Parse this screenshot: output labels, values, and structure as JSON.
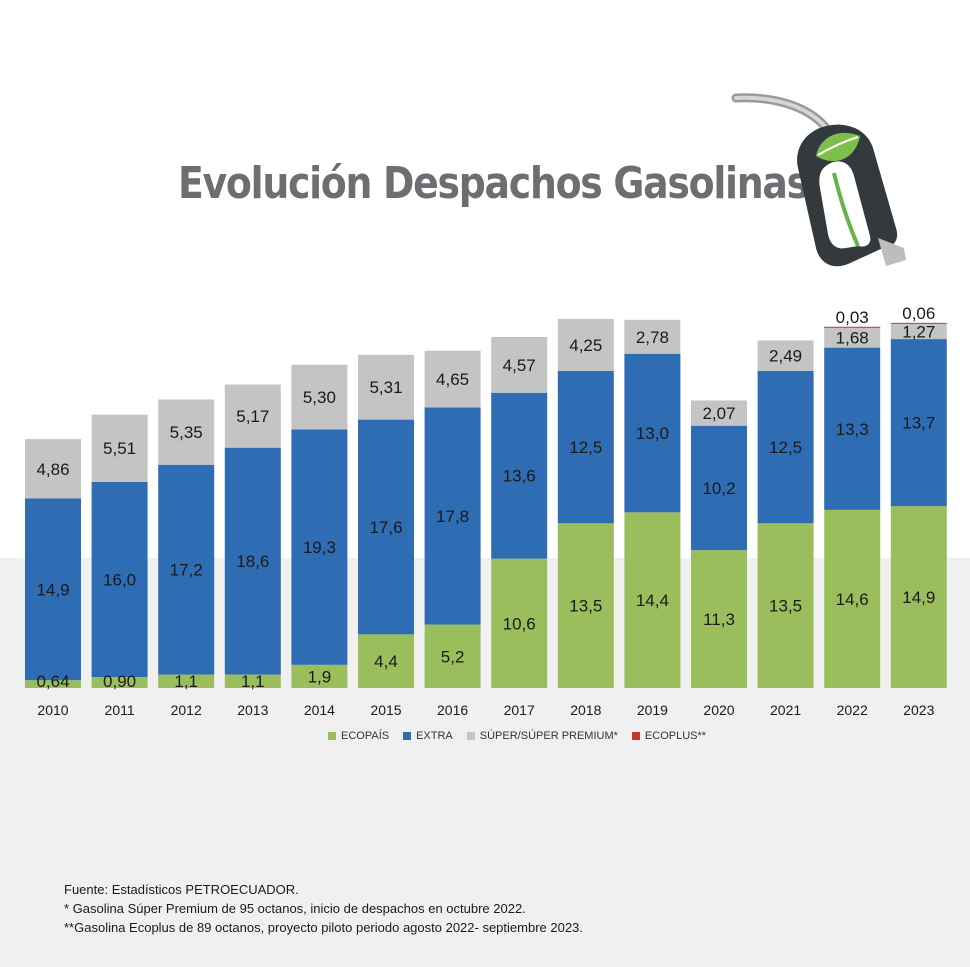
{
  "title": "Evolución Despachos Gasolinas",
  "colors": {
    "ecopais": "#9bbe5c",
    "extra": "#2e6db4",
    "super": "#c4c4c4",
    "ecoplus": "#c0392b"
  },
  "icons": {
    "pump": "fuel-nozzle-leaf-icon"
  },
  "chart_data": {
    "type": "bar",
    "stacked": true,
    "categories": [
      "2010",
      "2011",
      "2012",
      "2013",
      "2014",
      "2015",
      "2016",
      "2017",
      "2018",
      "2019",
      "2020",
      "2021",
      "2022",
      "2023"
    ],
    "series": [
      {
        "name": "ECOPAÍS",
        "color": "#9bbe5c",
        "values": [
          0.64,
          0.9,
          1.1,
          1.1,
          1.9,
          4.4,
          5.2,
          10.6,
          13.5,
          14.4,
          11.3,
          13.5,
          14.6,
          14.9
        ],
        "labels": [
          "0,64",
          "0,90",
          "1,1",
          "1,1",
          "1,9",
          "4,4",
          "5,2",
          "10,6",
          "13,5",
          "14,4",
          "11,3",
          "13,5",
          "14,6",
          "14,9"
        ]
      },
      {
        "name": "EXTRA",
        "color": "#2e6db4",
        "values": [
          14.9,
          16.0,
          17.2,
          18.6,
          19.3,
          17.6,
          17.8,
          13.6,
          12.5,
          13.0,
          10.2,
          12.5,
          13.3,
          13.7
        ],
        "labels": [
          "14,9",
          "16,0",
          "17,2",
          "18,6",
          "19,3",
          "17,6",
          "17,8",
          "13,6",
          "12,5",
          "13,0",
          "10,2",
          "12,5",
          "13,3",
          "13,7"
        ]
      },
      {
        "name": "SÚPER/SÚPER PREMIUM*",
        "color": "#c4c4c4",
        "values": [
          4.86,
          5.51,
          5.35,
          5.17,
          5.3,
          5.31,
          4.65,
          4.57,
          4.25,
          2.78,
          2.07,
          2.49,
          1.68,
          1.27
        ],
        "labels": [
          "4,86",
          "5,51",
          "5,35",
          "5,17",
          "5,30",
          "5,31",
          "4,65",
          "4,57",
          "4,25",
          "2,78",
          "2,07",
          "2,49",
          "1,68",
          "1,27"
        ]
      },
      {
        "name": "ECOPLUS**",
        "color": "#c0392b",
        "values": [
          0,
          0,
          0,
          0,
          0,
          0,
          0,
          0,
          0,
          0,
          0,
          0,
          0.03,
          0.06
        ],
        "labels": [
          "",
          "",
          "",
          "",
          "",
          "",
          "",
          "",
          "",
          "",
          "",
          "",
          "0,03",
          "0,06"
        ]
      }
    ],
    "ylim": [
      0,
      30
    ],
    "grid": false,
    "legend_position": "bottom"
  },
  "legend": [
    {
      "label": "ECOPAÍS",
      "color": "#9bbe5c"
    },
    {
      "label": "EXTRA",
      "color": "#2e6db4"
    },
    {
      "label": "SÚPER/SÚPER PREMIUM*",
      "color": "#c4c4c4"
    },
    {
      "label": "ECOPLUS**",
      "color": "#c0392b"
    }
  ],
  "notes": {
    "source": "Fuente: Estadísticos PETROECUADOR.",
    "note1": "* Gasolina Súper Premium de 95 octanos, inicio de despachos en octubre 2022.",
    "note2": "**Gasolina Ecoplus de 89 octanos, proyecto piloto periodo agosto 2022- septiembre 2023."
  }
}
